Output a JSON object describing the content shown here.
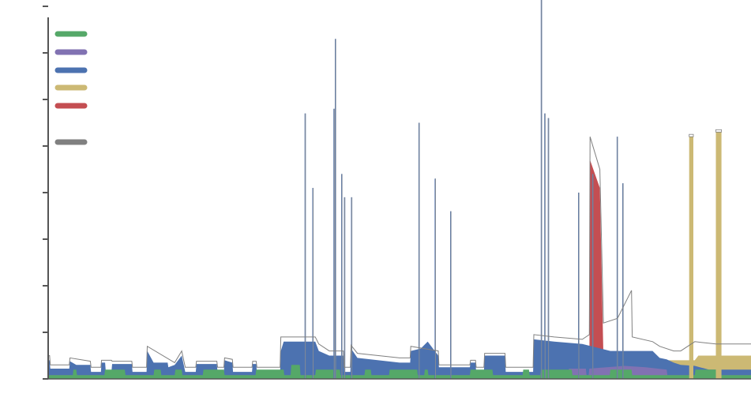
{
  "chart_data": {
    "type": "area",
    "title": "",
    "xlabel": "",
    "ylabel": "",
    "grid": false,
    "legend_position": "top-left",
    "legend": [
      {
        "color": "#55a868",
        "label": ""
      },
      {
        "color": "#8172b2",
        "label": ""
      },
      {
        "color": "#4c72b0",
        "label": ""
      },
      {
        "color": "#ccb974",
        "label": ""
      },
      {
        "color": "#c44e52",
        "label": ""
      },
      {
        "color": "#808080",
        "label": ""
      }
    ],
    "ylim": [
      0,
      8
    ],
    "xlim": [
      0,
      1000
    ],
    "series": [
      {
        "name": "",
        "color": "#55a868",
        "points": [
          [
            0,
            0.08
          ],
          [
            35,
            0.08
          ],
          [
            36,
            0.2
          ],
          [
            40,
            0.2
          ],
          [
            41,
            0.08
          ],
          [
            80,
            0.08
          ],
          [
            81,
            0.2
          ],
          [
            109,
            0.2
          ],
          [
            110,
            0.08
          ],
          [
            150,
            0.08
          ],
          [
            151,
            0.2
          ],
          [
            160,
            0.2
          ],
          [
            161,
            0.08
          ],
          [
            180,
            0.08
          ],
          [
            181,
            0.2
          ],
          [
            190,
            0.2
          ],
          [
            191,
            0.08
          ],
          [
            220,
            0.08
          ],
          [
            221,
            0.2
          ],
          [
            250,
            0.2
          ],
          [
            251,
            0.08
          ],
          [
            295,
            0.08
          ],
          [
            296,
            0.2
          ],
          [
            335,
            0.2
          ],
          [
            336,
            0.08
          ],
          [
            345,
            0.08
          ],
          [
            346,
            0.3
          ],
          [
            358,
            0.3
          ],
          [
            359,
            0.08
          ],
          [
            380,
            0.08
          ],
          [
            381,
            0.2
          ],
          [
            415,
            0.2
          ],
          [
            416,
            0.08
          ],
          [
            450,
            0.08
          ],
          [
            451,
            0.2
          ],
          [
            459,
            0.2
          ],
          [
            460,
            0.08
          ],
          [
            485,
            0.08
          ],
          [
            486,
            0.2
          ],
          [
            525,
            0.2
          ],
          [
            526,
            0.08
          ],
          [
            535,
            0.08
          ],
          [
            536,
            0.2
          ],
          [
            540,
            0.2
          ],
          [
            541,
            0.08
          ],
          [
            600,
            0.08
          ],
          [
            601,
            0.2
          ],
          [
            632,
            0.2
          ],
          [
            633,
            0.08
          ],
          [
            675,
            0.08
          ],
          [
            676,
            0.2
          ],
          [
            684,
            0.2
          ],
          [
            685,
            0.08
          ],
          [
            700,
            0.08
          ],
          [
            701,
            0.2
          ],
          [
            745,
            0.2
          ],
          [
            746,
            0.08
          ],
          [
            799,
            0.08
          ],
          [
            800,
            0.2
          ],
          [
            830,
            0.2
          ],
          [
            831,
            0.08
          ],
          [
            920,
            0.08
          ],
          [
            921,
            0.2
          ],
          [
            955,
            0.2
          ],
          [
            956,
            0.08
          ],
          [
            1000,
            0.08
          ]
        ]
      },
      {
        "name": "",
        "color": "#8172b2",
        "points": [
          [
            0,
            0.08
          ],
          [
            740,
            0.08
          ],
          [
            741,
            0.22
          ],
          [
            765,
            0.22
          ],
          [
            766,
            0.08
          ],
          [
            769,
            0.08
          ],
          [
            770,
            0.22
          ],
          [
            820,
            0.28
          ],
          [
            850,
            0.25
          ],
          [
            880,
            0.2
          ],
          [
            881,
            0.08
          ],
          [
            1000,
            0.08
          ]
        ]
      },
      {
        "name": "",
        "color": "#4c72b0",
        "points": [
          [
            0,
            0.4
          ],
          [
            2,
            0.4
          ],
          [
            3,
            0.22
          ],
          [
            30,
            0.22
          ],
          [
            31,
            0.38
          ],
          [
            40,
            0.3
          ],
          [
            60,
            0.3
          ],
          [
            61,
            0.15
          ],
          [
            75,
            0.15
          ],
          [
            76,
            0.35
          ],
          [
            81,
            0.35
          ],
          [
            82,
            0.15
          ],
          [
            90,
            0.15
          ],
          [
            91,
            0.32
          ],
          [
            119,
            0.32
          ],
          [
            120,
            0.15
          ],
          [
            140,
            0.15
          ],
          [
            141,
            0.6
          ],
          [
            150,
            0.35
          ],
          [
            170,
            0.35
          ],
          [
            171,
            0.25
          ],
          [
            180,
            0.3
          ],
          [
            190,
            0.5
          ],
          [
            195,
            0.15
          ],
          [
            210,
            0.15
          ],
          [
            211,
            0.32
          ],
          [
            240,
            0.32
          ],
          [
            241,
            0.15
          ],
          [
            250,
            0.15
          ],
          [
            251,
            0.4
          ],
          [
            262,
            0.35
          ],
          [
            263,
            0.15
          ],
          [
            290,
            0.15
          ],
          [
            291,
            0.32
          ],
          [
            296,
            0.32
          ],
          [
            297,
            0.15
          ],
          [
            330,
            0.15
          ],
          [
            331,
            0.6
          ],
          [
            335,
            0.8
          ],
          [
            350,
            0.8
          ],
          [
            380,
            0.8
          ],
          [
            385,
            0.6
          ],
          [
            400,
            0.5
          ],
          [
            420,
            0.5
          ],
          [
            421,
            0.15
          ],
          [
            430,
            0.15
          ],
          [
            431,
            0.65
          ],
          [
            440,
            0.45
          ],
          [
            500,
            0.35
          ],
          [
            515,
            0.35
          ],
          [
            516,
            0.6
          ],
          [
            530,
            0.65
          ],
          [
            540,
            0.8
          ],
          [
            555,
            0.5
          ],
          [
            556,
            0.25
          ],
          [
            600,
            0.25
          ],
          [
            601,
            0.35
          ],
          [
            608,
            0.35
          ],
          [
            609,
            0.15
          ],
          [
            620,
            0.15
          ],
          [
            621,
            0.5
          ],
          [
            650,
            0.5
          ],
          [
            651,
            0.15
          ],
          [
            690,
            0.15
          ],
          [
            691,
            0.85
          ],
          [
            720,
            0.8
          ],
          [
            760,
            0.75
          ],
          [
            800,
            0.6
          ],
          [
            860,
            0.6
          ],
          [
            870,
            0.45
          ],
          [
            880,
            0.42
          ],
          [
            890,
            0.35
          ],
          [
            900,
            0.3
          ],
          [
            920,
            0.28
          ],
          [
            940,
            0.2
          ],
          [
            960,
            0.2
          ],
          [
            1000,
            0.2
          ]
        ]
      },
      {
        "name": "",
        "color": "#ccb974",
        "points": [
          [
            0,
            0
          ],
          [
            880,
            0
          ],
          [
            881,
            0.4
          ],
          [
            920,
            0.4
          ],
          [
            925,
            0.5
          ],
          [
            950,
            0.5
          ],
          [
            1000,
            0.5
          ]
        ]
      },
      {
        "name": "",
        "color": "#c44e52",
        "points": [
          [
            0,
            0
          ],
          [
            770,
            0
          ],
          [
            771,
            4.7
          ],
          [
            785,
            4.1
          ],
          [
            790,
            0.5
          ],
          [
            800,
            0.4
          ],
          [
            820,
            0.3
          ],
          [
            830,
            0.6
          ],
          [
            831,
            0
          ],
          [
            1000,
            0
          ]
        ]
      },
      {
        "name": "",
        "color": "#808080",
        "points": [
          [
            0,
            0.5
          ],
          [
            2,
            0.5
          ],
          [
            3,
            0.3
          ],
          [
            30,
            0.3
          ],
          [
            31,
            0.45
          ],
          [
            60,
            0.38
          ],
          [
            61,
            0.25
          ],
          [
            75,
            0.25
          ],
          [
            76,
            0.4
          ],
          [
            90,
            0.4
          ],
          [
            91,
            0.38
          ],
          [
            119,
            0.38
          ],
          [
            120,
            0.25
          ],
          [
            140,
            0.25
          ],
          [
            141,
            0.7
          ],
          [
            180,
            0.35
          ],
          [
            190,
            0.6
          ],
          [
            195,
            0.25
          ],
          [
            210,
            0.25
          ],
          [
            211,
            0.38
          ],
          [
            240,
            0.38
          ],
          [
            241,
            0.25
          ],
          [
            250,
            0.25
          ],
          [
            251,
            0.45
          ],
          [
            262,
            0.42
          ],
          [
            263,
            0.25
          ],
          [
            290,
            0.25
          ],
          [
            291,
            0.38
          ],
          [
            296,
            0.38
          ],
          [
            297,
            0.25
          ],
          [
            330,
            0.25
          ],
          [
            331,
            0.9
          ],
          [
            345,
            0.9
          ],
          [
            380,
            0.9
          ],
          [
            385,
            0.75
          ],
          [
            400,
            0.6
          ],
          [
            420,
            0.6
          ],
          [
            421,
            0.25
          ],
          [
            430,
            0.25
          ],
          [
            431,
            0.72
          ],
          [
            440,
            0.55
          ],
          [
            500,
            0.45
          ],
          [
            515,
            0.45
          ],
          [
            516,
            0.7
          ],
          [
            555,
            0.6
          ],
          [
            556,
            0.3
          ],
          [
            600,
            0.3
          ],
          [
            601,
            0.4
          ],
          [
            608,
            0.4
          ],
          [
            609,
            0.25
          ],
          [
            620,
            0.25
          ],
          [
            621,
            0.55
          ],
          [
            650,
            0.55
          ],
          [
            651,
            0.25
          ],
          [
            690,
            0.25
          ],
          [
            691,
            0.95
          ],
          [
            720,
            0.9
          ],
          [
            760,
            0.85
          ],
          [
            770,
            0.95
          ],
          [
            771,
            5.2
          ],
          [
            785,
            4.5
          ],
          [
            790,
            1.2
          ],
          [
            810,
            1.3
          ],
          [
            820,
            1.6
          ],
          [
            830,
            1.9
          ],
          [
            831,
            0.9
          ],
          [
            860,
            0.8
          ],
          [
            870,
            0.7
          ],
          [
            890,
            0.6
          ],
          [
            900,
            0.6
          ],
          [
            920,
            0.8
          ],
          [
            950,
            0.75
          ],
          [
            1000,
            0.75
          ]
        ]
      }
    ],
    "spikes": [
      {
        "x": 366,
        "y": 5.7
      },
      {
        "x": 377,
        "y": 4.1
      },
      {
        "x": 407,
        "y": 5.8
      },
      {
        "x": 409,
        "y": 7.3
      },
      {
        "x": 418,
        "y": 4.4
      },
      {
        "x": 422,
        "y": 3.9
      },
      {
        "x": 432,
        "y": 3.9
      },
      {
        "x": 528,
        "y": 5.5
      },
      {
        "x": 551,
        "y": 4.3
      },
      {
        "x": 573,
        "y": 3.6
      },
      {
        "x": 702,
        "y": 8.4
      },
      {
        "x": 707,
        "y": 5.7
      },
      {
        "x": 712,
        "y": 5.6
      },
      {
        "x": 755,
        "y": 4.0
      },
      {
        "x": 775,
        "y": 4.4
      },
      {
        "x": 810,
        "y": 5.2
      },
      {
        "x": 818,
        "y": 4.2
      }
    ],
    "yellow_bars": [
      {
        "x0": 912,
        "x1": 918,
        "y": 5.2
      },
      {
        "x0": 950,
        "x1": 958,
        "y": 5.3
      }
    ]
  }
}
